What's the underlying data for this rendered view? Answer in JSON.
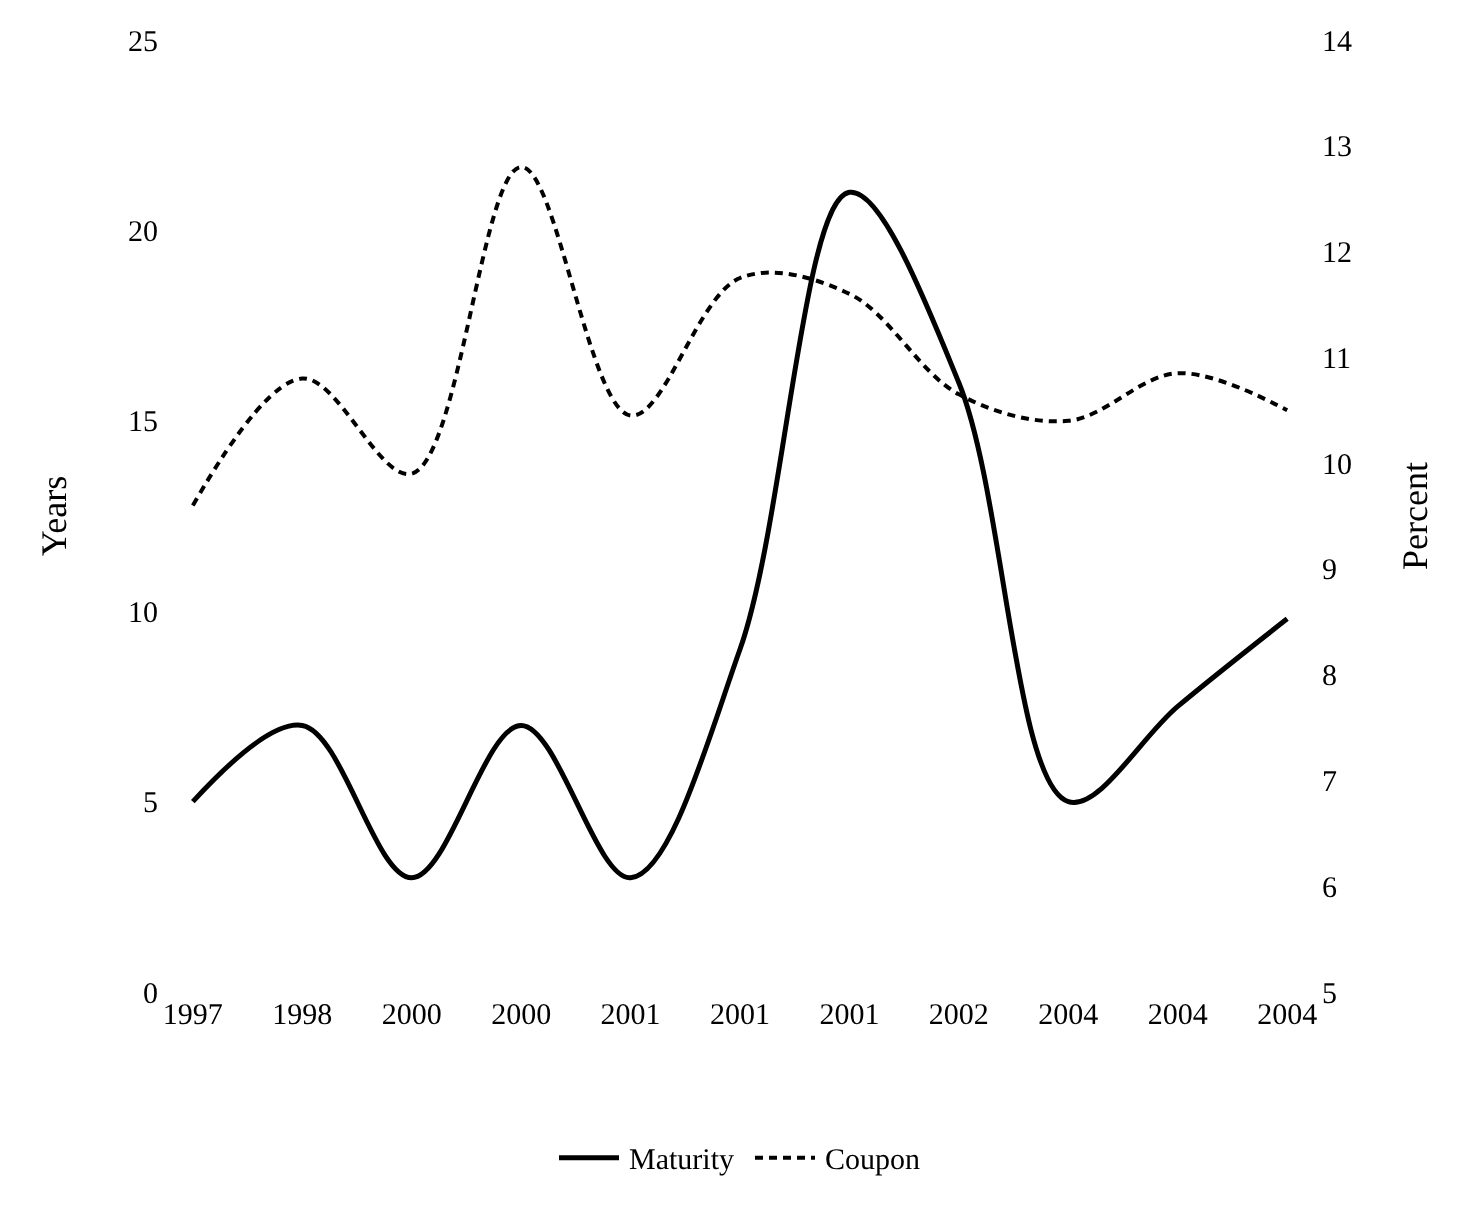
{
  "chart_data": {
    "type": "line",
    "ylabel": "Years",
    "y2label": "Percent",
    "categories": [
      "1997",
      "1998",
      "2000",
      "2000",
      "2001",
      "2001",
      "2001",
      "2002",
      "2004",
      "2004",
      "2004"
    ],
    "series": [
      {
        "name": "Maturity",
        "color": "#000000",
        "line_style": "solid",
        "values": [
          5,
          7,
          3,
          7,
          3,
          9,
          21,
          16,
          5,
          7.5,
          9.8
        ]
      },
      {
        "name": "Coupon",
        "color": "#000000",
        "line_style": "dashed",
        "axis": "y2",
        "values": [
          9.6,
          10.8,
          9.9,
          12.8,
          10.45,
          11.75,
          11.6,
          10.65,
          10.4,
          10.85,
          10.5
        ]
      }
    ],
    "ylim": [
      0,
      25
    ],
    "yticks": [
      0,
      5,
      10,
      15,
      20,
      25
    ],
    "y2lim": [
      5,
      14
    ],
    "y2ticks": [
      5,
      6,
      7,
      8,
      9,
      10,
      11,
      12,
      13,
      14
    ],
    "grid": false,
    "legend": "bottom",
    "marker": "none"
  }
}
